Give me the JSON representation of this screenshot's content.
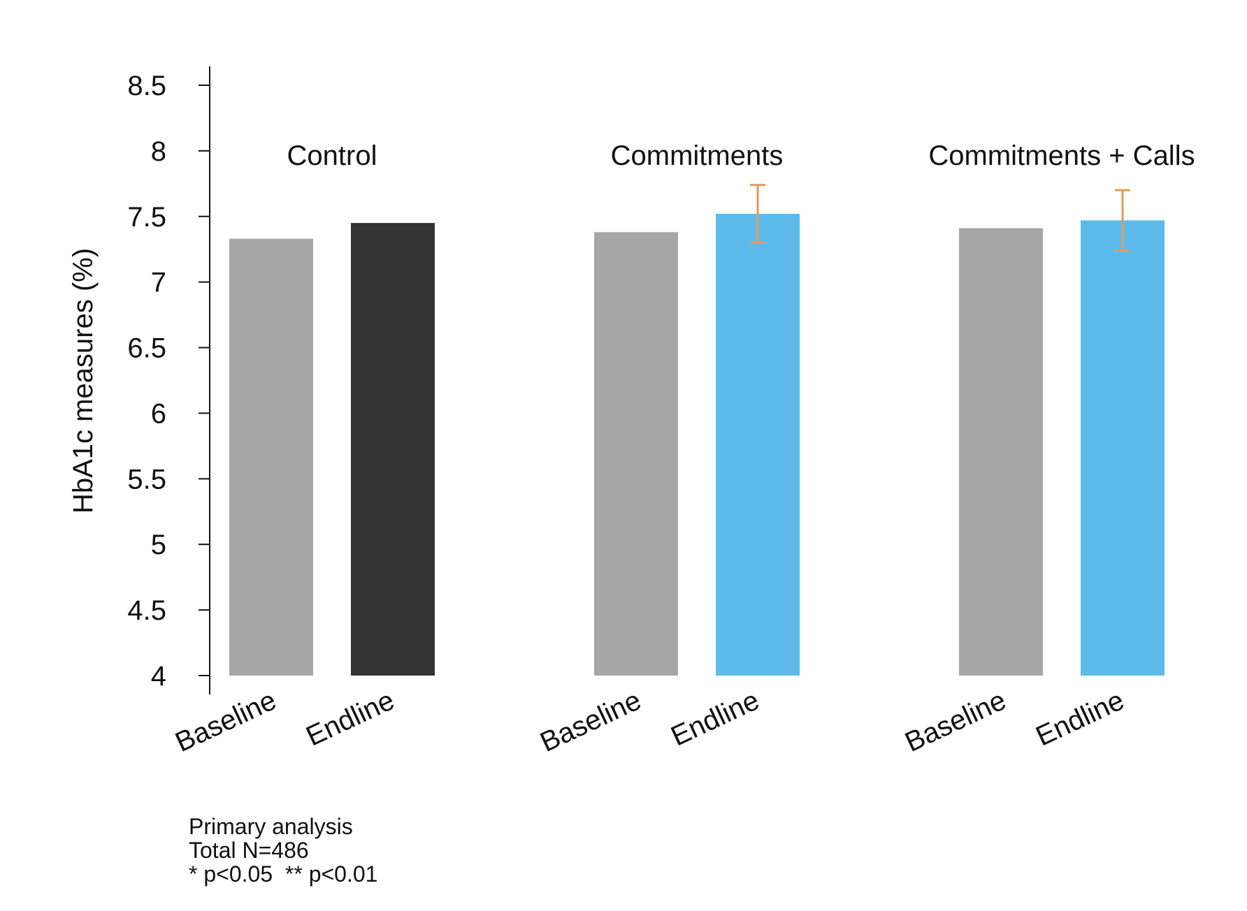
{
  "chart_data": {
    "type": "bar",
    "ylabel": "HbA1c measures (%)",
    "ylim": [
      4,
      8.5
    ],
    "yticks": [
      "4",
      "4.5",
      "5",
      "5.5",
      "6",
      "6.5",
      "7",
      "7.5",
      "8",
      "8.5"
    ],
    "groups": [
      {
        "name": "Control",
        "bars": [
          {
            "category": "Baseline",
            "value": 7.33,
            "color": "#a6a6a6"
          },
          {
            "category": "Endline",
            "value": 7.45,
            "color": "#333333"
          }
        ]
      },
      {
        "name": "Commitments",
        "bars": [
          {
            "category": "Baseline",
            "value": 7.38,
            "color": "#a6a6a6"
          },
          {
            "category": "Endline",
            "value": 7.52,
            "color": "#5dbbec",
            "error": [
              7.3,
              7.74
            ]
          }
        ]
      },
      {
        "name": "Commitments + Calls",
        "bars": [
          {
            "category": "Baseline",
            "value": 7.41,
            "color": "#a6a6a6"
          },
          {
            "category": "Endline",
            "value": 7.47,
            "color": "#5dbbec",
            "error": [
              7.24,
              7.7
            ]
          }
        ]
      }
    ],
    "error_color": "#e09a5c",
    "grid": false
  },
  "notes": {
    "line1": "Primary analysis",
    "line2": "Total N=486",
    "line3": "* p<0.05  ** p<0.01"
  }
}
